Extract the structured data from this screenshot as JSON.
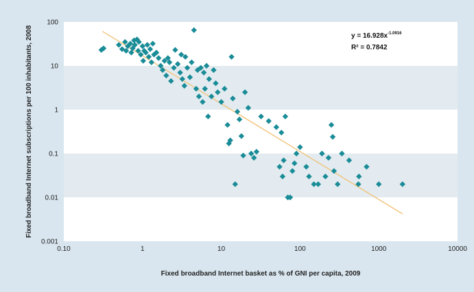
{
  "chart_data": {
    "type": "scatter",
    "xlabel": "Fixed broadband Internet basket as % of GNI per capita, 2009",
    "ylabel": "Fixed broadband Internet subscriptions per 100 inhabitants, 2008",
    "x_scale": "log",
    "y_scale": "log",
    "xlim": [
      0.1,
      10000
    ],
    "ylim": [
      0.001,
      100
    ],
    "x_ticks": [
      "0.10",
      "1",
      "10",
      "100",
      "1000",
      "10000"
    ],
    "y_ticks": [
      "0.001",
      "0.01",
      "0.1",
      "1",
      "10",
      "100"
    ],
    "grid": "alternating horizontal bands",
    "colors": {
      "points": "#1a8c97",
      "trendline": "#f2c27a",
      "band": "#e3ebf0",
      "plot_bg": "#ffffff",
      "frame": "#d9e6ef"
    },
    "trendline": {
      "equation": "y = 16.928x",
      "exponent": "-1.0916",
      "r_squared": "R² = 0.7842",
      "coef": 16.928,
      "power": -1.0916,
      "x_range": [
        0.31,
        2000
      ]
    },
    "points": [
      {
        "x": 0.3,
        "y": 23
      },
      {
        "x": 0.32,
        "y": 25
      },
      {
        "x": 0.5,
        "y": 30
      },
      {
        "x": 0.55,
        "y": 24
      },
      {
        "x": 0.6,
        "y": 35
      },
      {
        "x": 0.62,
        "y": 22
      },
      {
        "x": 0.65,
        "y": 28
      },
      {
        "x": 0.7,
        "y": 32
      },
      {
        "x": 0.72,
        "y": 20
      },
      {
        "x": 0.75,
        "y": 25
      },
      {
        "x": 0.78,
        "y": 38
      },
      {
        "x": 0.8,
        "y": 30
      },
      {
        "x": 0.85,
        "y": 40
      },
      {
        "x": 0.88,
        "y": 22
      },
      {
        "x": 0.9,
        "y": 35
      },
      {
        "x": 0.95,
        "y": 18
      },
      {
        "x": 1.0,
        "y": 28
      },
      {
        "x": 1.02,
        "y": 13
      },
      {
        "x": 1.05,
        "y": 22
      },
      {
        "x": 1.1,
        "y": 20
      },
      {
        "x": 1.15,
        "y": 30
      },
      {
        "x": 1.2,
        "y": 16
      },
      {
        "x": 1.25,
        "y": 24
      },
      {
        "x": 1.3,
        "y": 12
      },
      {
        "x": 1.35,
        "y": 32
      },
      {
        "x": 1.4,
        "y": 18
      },
      {
        "x": 1.5,
        "y": 20
      },
      {
        "x": 1.6,
        "y": 15
      },
      {
        "x": 1.7,
        "y": 10
      },
      {
        "x": 1.8,
        "y": 8
      },
      {
        "x": 1.9,
        "y": 13
      },
      {
        "x": 2.0,
        "y": 6
      },
      {
        "x": 2.1,
        "y": 15
      },
      {
        "x": 2.2,
        "y": 12
      },
      {
        "x": 2.3,
        "y": 4.5
      },
      {
        "x": 2.5,
        "y": 9
      },
      {
        "x": 2.6,
        "y": 23
      },
      {
        "x": 2.8,
        "y": 11
      },
      {
        "x": 3.0,
        "y": 7
      },
      {
        "x": 3.1,
        "y": 18
      },
      {
        "x": 3.2,
        "y": 5
      },
      {
        "x": 3.4,
        "y": 3.5
      },
      {
        "x": 3.5,
        "y": 16
      },
      {
        "x": 3.7,
        "y": 9
      },
      {
        "x": 4.0,
        "y": 5.5
      },
      {
        "x": 4.2,
        "y": 12
      },
      {
        "x": 4.5,
        "y": 65
      },
      {
        "x": 4.8,
        "y": 3
      },
      {
        "x": 5.0,
        "y": 8
      },
      {
        "x": 5.2,
        "y": 2
      },
      {
        "x": 5.5,
        "y": 9
      },
      {
        "x": 5.8,
        "y": 1.5
      },
      {
        "x": 6.0,
        "y": 7
      },
      {
        "x": 6.2,
        "y": 3
      },
      {
        "x": 6.5,
        "y": 10
      },
      {
        "x": 6.8,
        "y": 0.7
      },
      {
        "x": 7.0,
        "y": 5
      },
      {
        "x": 7.5,
        "y": 2
      },
      {
        "x": 8.0,
        "y": 8
      },
      {
        "x": 8.5,
        "y": 4
      },
      {
        "x": 9.0,
        "y": 2.5
      },
      {
        "x": 10,
        "y": 1.5
      },
      {
        "x": 11,
        "y": 3
      },
      {
        "x": 12,
        "y": 0.45
      },
      {
        "x": 12.5,
        "y": 0.17
      },
      {
        "x": 13,
        "y": 0.2
      },
      {
        "x": 13.5,
        "y": 16
      },
      {
        "x": 14,
        "y": 1.8
      },
      {
        "x": 15,
        "y": 0.02
      },
      {
        "x": 16,
        "y": 0.9
      },
      {
        "x": 17,
        "y": 0.6
      },
      {
        "x": 18,
        "y": 0.25
      },
      {
        "x": 19,
        "y": 0.09
      },
      {
        "x": 20,
        "y": 2.5
      },
      {
        "x": 22,
        "y": 1.1
      },
      {
        "x": 24,
        "y": 0.1
      },
      {
        "x": 26,
        "y": 0.08
      },
      {
        "x": 28,
        "y": 0.11
      },
      {
        "x": 32,
        "y": 0.7
      },
      {
        "x": 40,
        "y": 0.55
      },
      {
        "x": 50,
        "y": 0.4
      },
      {
        "x": 55,
        "y": 0.05
      },
      {
        "x": 58,
        "y": 0.3
      },
      {
        "x": 60,
        "y": 0.03
      },
      {
        "x": 62,
        "y": 0.07
      },
      {
        "x": 65,
        "y": 0.7
      },
      {
        "x": 70,
        "y": 0.01
      },
      {
        "x": 75,
        "y": 0.01
      },
      {
        "x": 80,
        "y": 0.04
      },
      {
        "x": 85,
        "y": 0.06
      },
      {
        "x": 90,
        "y": 0.1
      },
      {
        "x": 100,
        "y": 0.14
      },
      {
        "x": 120,
        "y": 0.05
      },
      {
        "x": 130,
        "y": 0.03
      },
      {
        "x": 150,
        "y": 0.02
      },
      {
        "x": 170,
        "y": 0.02
      },
      {
        "x": 190,
        "y": 0.1
      },
      {
        "x": 210,
        "y": 0.03
      },
      {
        "x": 230,
        "y": 0.08
      },
      {
        "x": 250,
        "y": 0.45
      },
      {
        "x": 260,
        "y": 0.24
      },
      {
        "x": 270,
        "y": 0.04
      },
      {
        "x": 300,
        "y": 0.02
      },
      {
        "x": 340,
        "y": 0.1
      },
      {
        "x": 420,
        "y": 0.07
      },
      {
        "x": 550,
        "y": 0.02
      },
      {
        "x": 560,
        "y": 0.03
      },
      {
        "x": 700,
        "y": 0.05
      },
      {
        "x": 1000,
        "y": 0.02
      },
      {
        "x": 2000,
        "y": 0.02
      }
    ]
  }
}
